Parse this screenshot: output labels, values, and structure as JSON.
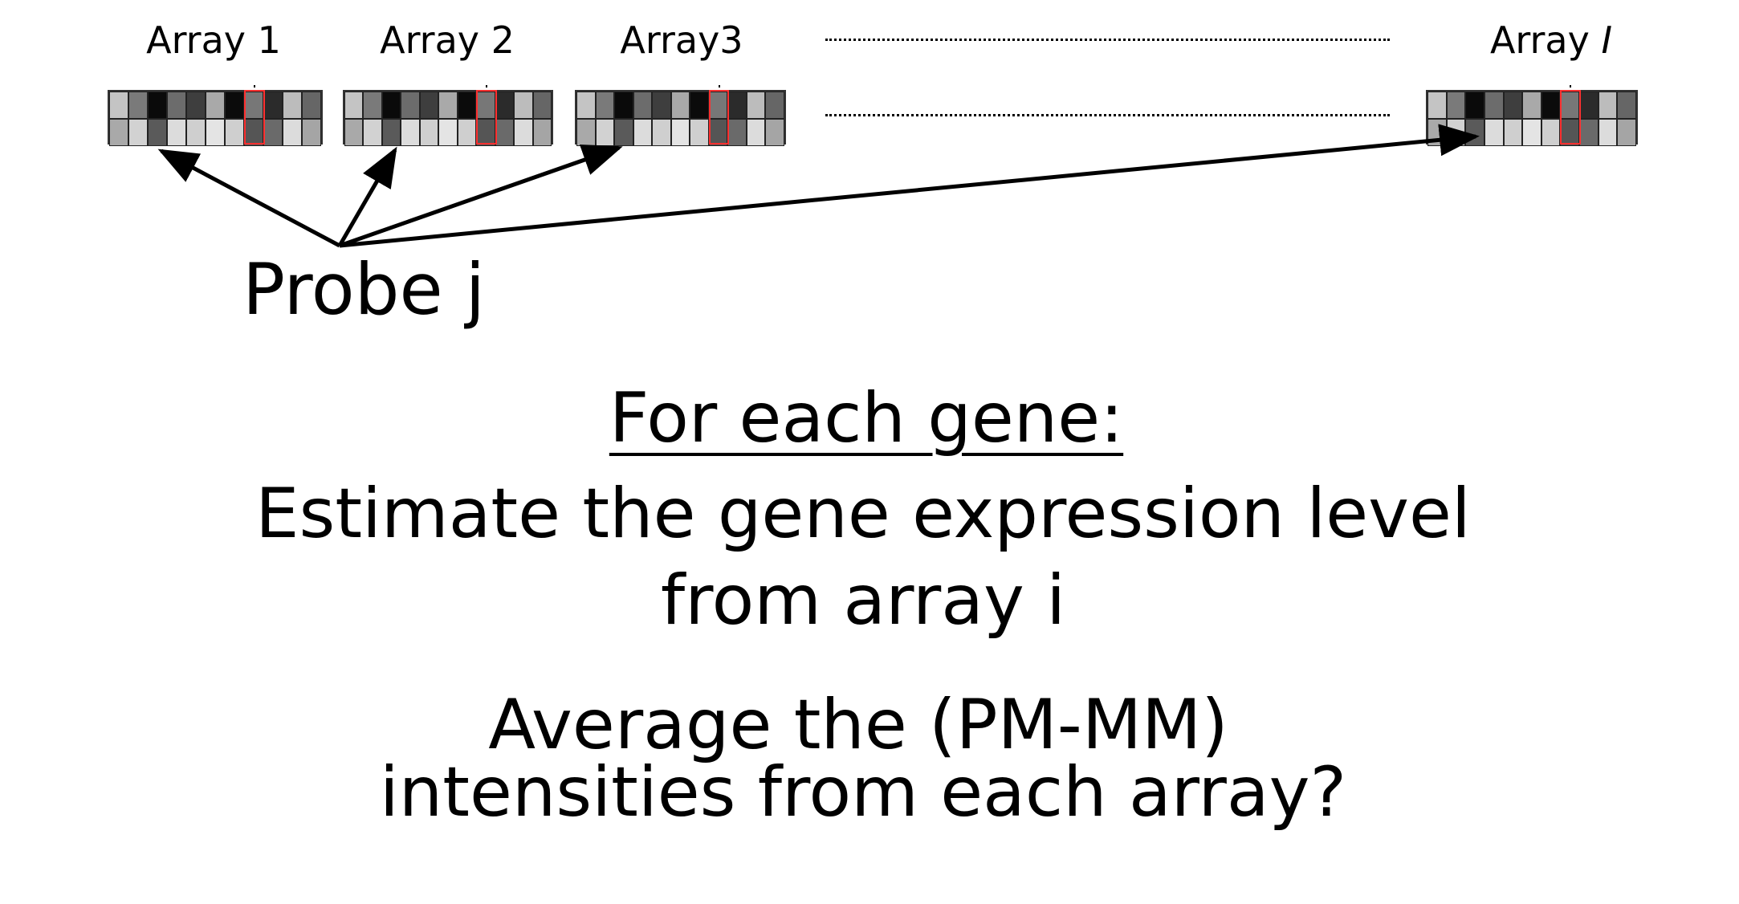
{
  "arrays": [
    {
      "label": "Array 1",
      "label_prefix": "",
      "label_italic": ""
    },
    {
      "label": "Array 2",
      "label_prefix": "",
      "label_italic": ""
    },
    {
      "label": "Array3",
      "label_prefix": "",
      "label_italic": ""
    },
    {
      "label": "",
      "label_prefix": "Array ",
      "label_italic": "I"
    }
  ],
  "probe_label": "Probe j",
  "heading": "For each gene:",
  "body_lines": [
    "Estimate the gene expression level",
    "from array i",
    "Average the (PM-MM)",
    "intensities from each array?"
  ],
  "colors": {
    "highlight": "#ff3030",
    "arrow": "#000000",
    "text": "#000000"
  },
  "cell_shades": {
    "top_row": [
      "#c4c4c4",
      "#7a7a7a",
      "#0a0a0a",
      "#6c6c6c",
      "#3e3e3e",
      "#a9a9a9",
      "#0b0b0b",
      "#777777",
      "#2b2b2b",
      "#bcbcbc",
      "#666666"
    ],
    "bottom_row": [
      "#a9a9a9",
      "#d2d2d2",
      "#5a5a5a",
      "#dcdcdc",
      "#cfcfcf",
      "#e4e4e4",
      "#cfcfcf",
      "#555555",
      "#6a6a6a",
      "#dcdcdc",
      "#a5a5a5"
    ]
  },
  "highlight_column_index": 7
}
